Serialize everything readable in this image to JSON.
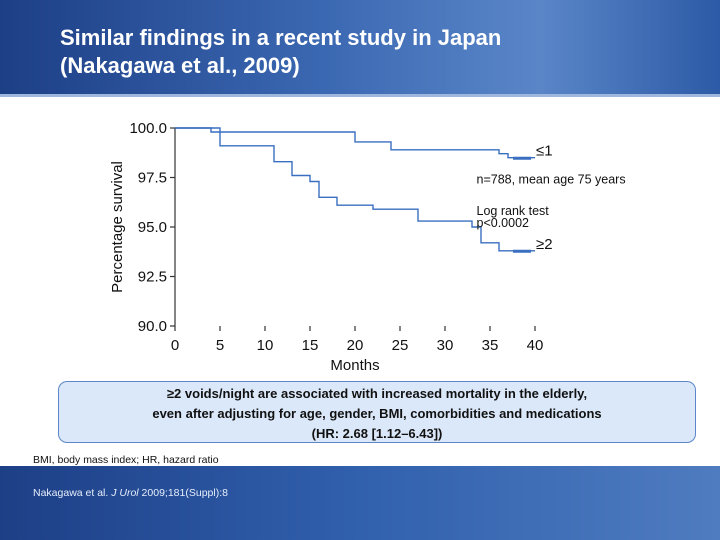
{
  "slide": {
    "title": "Similar findings in a recent study in Japan\n(Nakagawa et al., 2009)",
    "callout_lines": [
      "≥2 voids/night are associated with increased mortality in the elderly,",
      "even after adjusting for age, gender, BMI, comorbidities and medications",
      "(HR: 2.68 [1.12–6.43])"
    ],
    "footnote": "BMI, body mass index; HR, hazard ratio",
    "citation": "Nakagawa et al. J Urol 2009;181(Suppl):8"
  },
  "colors": {
    "header": "#2a55a0",
    "line": "#3a6fc0",
    "callout_bg": "#dbe8f9"
  },
  "chart_data": {
    "type": "line",
    "subtype": "kaplan-meier step curve",
    "xlabel": "Months",
    "ylabel": "Percentage survival",
    "xlim": [
      0,
      40
    ],
    "ylim": [
      90.0,
      100.0
    ],
    "x_ticks": [
      "0",
      "5",
      "10",
      "15",
      "20",
      "25",
      "30",
      "35",
      "40"
    ],
    "y_ticks": [
      "90.0",
      "92.5",
      "95.0",
      "97.5",
      "100.0"
    ],
    "annotations": [
      "n=788, mean age 75 years",
      "Log rank test",
      "p<0.0002"
    ],
    "series": [
      {
        "name": "≤1",
        "points": [
          [
            0,
            100.0
          ],
          [
            4,
            100.0
          ],
          [
            4,
            99.8
          ],
          [
            20,
            99.8
          ],
          [
            20,
            99.3
          ],
          [
            24,
            99.3
          ],
          [
            24,
            98.9
          ],
          [
            36,
            98.9
          ],
          [
            36,
            98.7
          ],
          [
            37,
            98.7
          ],
          [
            37,
            98.5
          ],
          [
            40,
            98.5
          ]
        ]
      },
      {
        "name": "≥2",
        "points": [
          [
            0,
            100.0
          ],
          [
            5,
            100.0
          ],
          [
            5,
            99.1
          ],
          [
            11,
            99.1
          ],
          [
            11,
            98.3
          ],
          [
            13,
            98.3
          ],
          [
            13,
            97.6
          ],
          [
            15,
            97.6
          ],
          [
            15,
            97.3
          ],
          [
            16,
            97.3
          ],
          [
            16,
            96.5
          ],
          [
            18,
            96.5
          ],
          [
            18,
            96.1
          ],
          [
            22,
            96.1
          ],
          [
            22,
            95.9
          ],
          [
            27,
            95.9
          ],
          [
            27,
            95.3
          ],
          [
            33,
            95.3
          ],
          [
            33,
            95.0
          ],
          [
            34,
            95.0
          ],
          [
            34,
            94.2
          ],
          [
            36,
            94.2
          ],
          [
            36,
            93.8
          ],
          [
            40,
            93.8
          ]
        ]
      }
    ]
  }
}
